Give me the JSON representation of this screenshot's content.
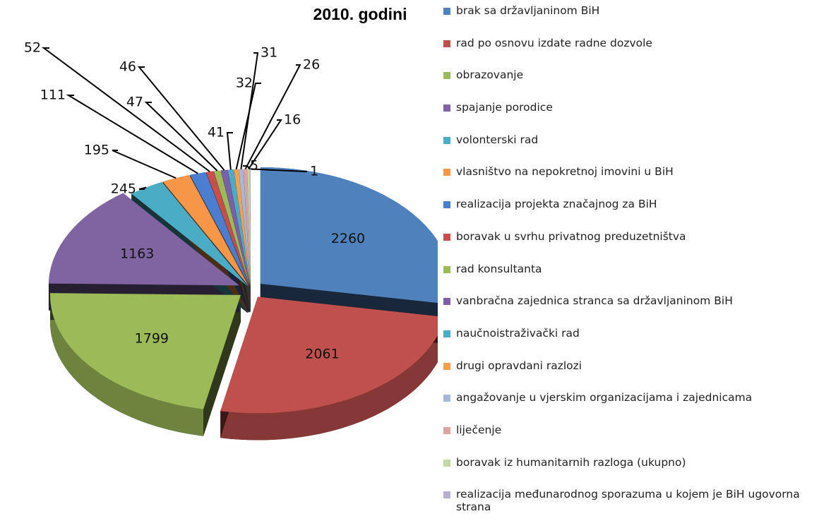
{
  "chart_data": {
    "type": "pie3d",
    "title": "2010. godini",
    "categories": [
      "brak sa državljaninom BiH",
      "rad po osnovu izdate radne dozvole",
      "obrazovanje",
      "spajanje porodice",
      "volonterski rad",
      "vlasništvo na nepokretnoj imovini u BiH",
      "realizacija projekta značajnog za BiH",
      "boravak u svrhu privatnog preduzetništva",
      "rad konsultanta",
      "vanbračna zajednica stranca sa državljaninom BiH",
      "naučnoistraživački rad",
      "drugi opravdani razlozi",
      "angažovanje u vjerskim organizacijama i zajednicama",
      "liječenje",
      "boravak iz humanitarnih razloga (ukupno)",
      "realizacija međunarodnog sporazuma u kojem je BiH ugovorna strana",
      null
    ],
    "values": [
      2260,
      2061,
      1799,
      1163,
      245,
      195,
      111,
      52,
      47,
      46,
      41,
      32,
      31,
      26,
      16,
      5,
      1
    ],
    "colors": [
      "#4f81bd",
      "#c0504d",
      "#9bbb59",
      "#8064a2",
      "#4bacc6",
      "#f79646",
      "#4a7fd0",
      "#c94d4a",
      "#9bbb59",
      "#7e5ea8",
      "#4bacc6",
      "#f7a04a",
      "#a5b8da",
      "#dba3a1",
      "#c4d7a4",
      "#b8aed0",
      "#cccccc"
    ]
  }
}
